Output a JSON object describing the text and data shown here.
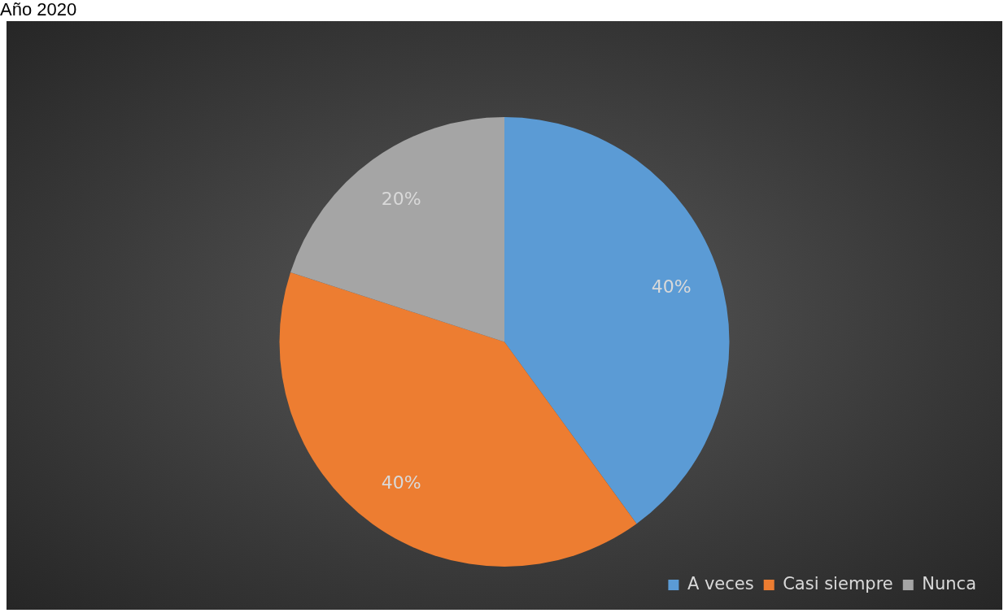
{
  "chart_data": {
    "type": "pie",
    "title": "Año 2020",
    "categories": [
      "A veces",
      "Casi siempre",
      "Nunca"
    ],
    "values": [
      40,
      40,
      20
    ],
    "colors": [
      "#5b9bd5",
      "#ed7d31",
      "#a5a5a5"
    ],
    "value_labels": [
      "40%",
      "40%",
      "20%"
    ],
    "legend": "bottom right"
  }
}
